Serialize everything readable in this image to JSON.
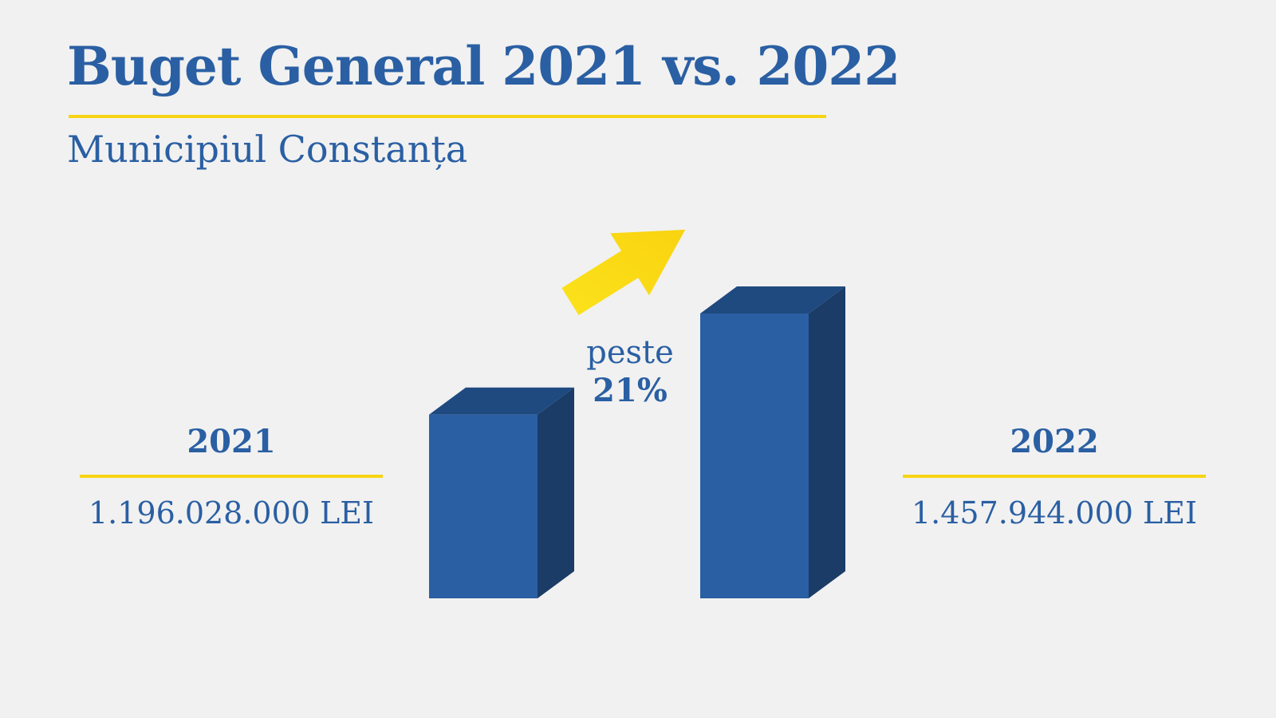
{
  "header": {
    "title": "Buget General 2021 vs. 2022",
    "subtitle": "Municipiul Constanța"
  },
  "stats": [
    {
      "year": "2021",
      "amount": "1.196.028.000 LEI"
    },
    {
      "year": "2022",
      "amount": "1.457.944.000 LEI"
    }
  ],
  "growth": {
    "prefix": "peste",
    "value": "21%"
  },
  "colors": {
    "primary": "#2a5fa3",
    "bar_front": "#2a5fa3",
    "bar_top": "#1f4a80",
    "bar_side": "#1a3c67",
    "accent": "#f7d415",
    "background": "#f1f1f1"
  },
  "icons": {
    "growth_arrow": "arrow-up-right-icon"
  },
  "chart_data": {
    "type": "bar",
    "categories": [
      "2021",
      "2022"
    ],
    "values": [
      1196028000,
      1457944000
    ],
    "title": "Buget General 2021 vs. 2022",
    "xlabel": "",
    "ylabel": "",
    "grid": false
  }
}
